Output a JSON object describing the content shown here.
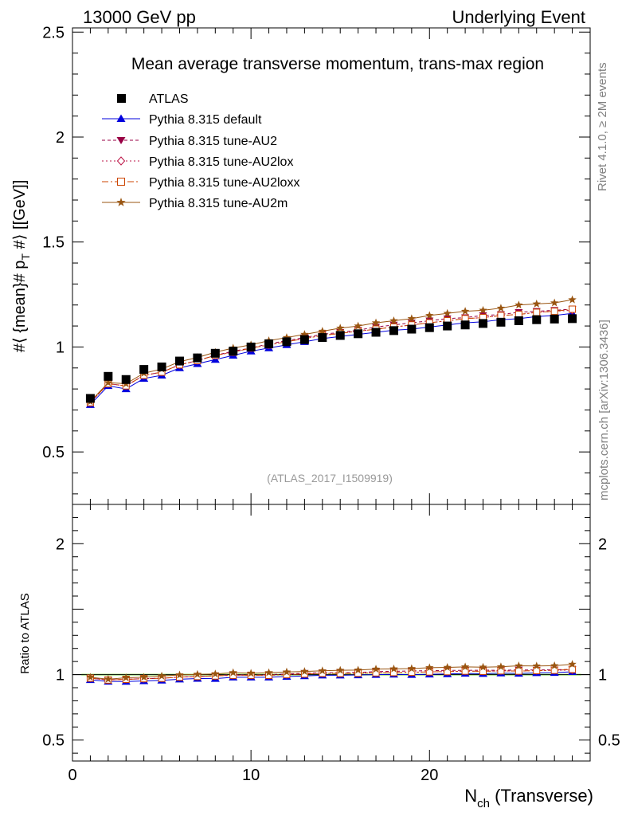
{
  "header": {
    "left": "13000 GeV pp",
    "right": "Underlying Event"
  },
  "side_labels": {
    "top": "Rivet 4.1.0, ≥ 2M events",
    "bottom": "mcplots.cern.ch [arXiv:1306.3436]"
  },
  "colors": {
    "atlas": "#000000",
    "default": "#0000dd",
    "au2": "#990044",
    "au2lox": "#bb1144",
    "au2loxx": "#cc4400",
    "au2m": "#995511",
    "ref_band": "#99ff66"
  },
  "chart_data": [
    {
      "type": "scatter",
      "title": "Mean average transverse momentum, trans-max region",
      "watermark": "(ATLAS_2017_I1509919)",
      "ylabel": "#⟨ {mean}# p_T #⟩ [[GeV]]",
      "ylabel_parts": {
        "pre": "#⟨ {mean}# p",
        "sub": "T",
        "post": " #⟩ [[GeV]]"
      },
      "xlim": [
        0,
        29
      ],
      "ylim": [
        0.25,
        2.52
      ],
      "yticks": [
        0.5,
        1,
        1.5,
        2,
        2.5
      ],
      "ytick_labels": [
        "0.5",
        "1",
        "1.5",
        "2",
        "2.5"
      ],
      "x": [
        1,
        2,
        3,
        4,
        5,
        6,
        7,
        8,
        9,
        10,
        11,
        12,
        13,
        14,
        15,
        16,
        17,
        18,
        19,
        20,
        21,
        22,
        23,
        24,
        25,
        26,
        27,
        28
      ],
      "series": [
        {
          "name": "ATLAS",
          "marker": "square",
          "line": "none",
          "values": [
            0.755,
            0.86,
            0.845,
            0.893,
            0.905,
            0.933,
            0.948,
            0.97,
            0.98,
            1.0,
            1.015,
            1.025,
            1.035,
            1.045,
            1.055,
            1.063,
            1.07,
            1.078,
            1.085,
            1.092,
            1.1,
            1.105,
            1.112,
            1.118,
            1.125,
            1.13,
            1.133,
            1.135
          ]
        },
        {
          "name": "Pythia 8.315 default",
          "marker": "triangle",
          "line": "solid",
          "values": [
            0.725,
            0.815,
            0.8,
            0.85,
            0.865,
            0.9,
            0.92,
            0.94,
            0.96,
            0.98,
            0.995,
            1.01,
            1.025,
            1.04,
            1.05,
            1.06,
            1.07,
            1.08,
            1.085,
            1.095,
            1.105,
            1.115,
            1.12,
            1.13,
            1.135,
            1.145,
            1.15,
            1.16
          ]
        },
        {
          "name": "Pythia 8.315 tune-AU2",
          "marker": "triangle-down",
          "line": "dashed",
          "values": [
            0.735,
            0.825,
            0.815,
            0.865,
            0.88,
            0.915,
            0.935,
            0.96,
            0.98,
            0.995,
            1.015,
            1.03,
            1.045,
            1.06,
            1.07,
            1.08,
            1.095,
            1.105,
            1.115,
            1.125,
            1.135,
            1.14,
            1.15,
            1.155,
            1.165,
            1.17,
            1.175,
            1.18
          ]
        },
        {
          "name": "Pythia 8.315 tune-AU2lox",
          "marker": "diamond",
          "line": "dotted",
          "values": [
            0.735,
            0.825,
            0.815,
            0.865,
            0.88,
            0.915,
            0.935,
            0.96,
            0.975,
            0.995,
            1.01,
            1.025,
            1.04,
            1.055,
            1.065,
            1.075,
            1.085,
            1.095,
            1.105,
            1.115,
            1.125,
            1.135,
            1.14,
            1.15,
            1.155,
            1.165,
            1.17,
            1.175
          ]
        },
        {
          "name": "Pythia 8.315 tune-AU2loxx",
          "marker": "square-open",
          "line": "dashdot",
          "values": [
            0.735,
            0.825,
            0.815,
            0.865,
            0.88,
            0.915,
            0.935,
            0.96,
            0.975,
            0.995,
            1.01,
            1.025,
            1.04,
            1.055,
            1.065,
            1.075,
            1.085,
            1.095,
            1.105,
            1.115,
            1.125,
            1.135,
            1.14,
            1.15,
            1.155,
            1.165,
            1.17,
            1.18
          ]
        },
        {
          "name": "Pythia 8.315 tune-AU2m",
          "marker": "star",
          "line": "solid",
          "values": [
            0.74,
            0.83,
            0.825,
            0.875,
            0.895,
            0.93,
            0.95,
            0.975,
            0.995,
            1.01,
            1.03,
            1.045,
            1.06,
            1.075,
            1.09,
            1.1,
            1.115,
            1.125,
            1.135,
            1.15,
            1.16,
            1.17,
            1.175,
            1.185,
            1.2,
            1.205,
            1.21,
            1.225
          ]
        }
      ]
    },
    {
      "type": "line",
      "ylabel": "Ratio to ATLAS",
      "xlabel": "N_ch (Transverse)",
      "xlabel_parts": {
        "pre": "N",
        "sub": "ch",
        "post": " (Transverse)"
      },
      "xlim": [
        0,
        29
      ],
      "xticks": [
        0,
        10,
        20
      ],
      "xtick_labels": [
        "0",
        "10",
        "20"
      ],
      "ylim": [
        0.34,
        2.3
      ],
      "yticks": [
        0.5,
        1,
        2
      ],
      "ytick_labels": [
        "0.5",
        "1",
        "2"
      ],
      "reference": 1.0,
      "x": [
        1,
        2,
        3,
        4,
        5,
        6,
        7,
        8,
        9,
        10,
        11,
        12,
        13,
        14,
        15,
        16,
        17,
        18,
        19,
        20,
        21,
        22,
        23,
        24,
        25,
        26,
        27,
        28
      ],
      "series": [
        {
          "name": "Pythia 8.315 default",
          "values": [
            0.96,
            0.948,
            0.947,
            0.952,
            0.956,
            0.965,
            0.97,
            0.969,
            0.98,
            0.98,
            0.98,
            0.985,
            0.99,
            0.995,
            0.995,
            0.997,
            1.0,
            1.002,
            1.0,
            1.003,
            1.005,
            1.009,
            1.007,
            1.011,
            1.009,
            1.013,
            1.015,
            1.022
          ]
        },
        {
          "name": "Pythia 8.315 tune-AU2",
          "values": [
            0.973,
            0.959,
            0.964,
            0.969,
            0.972,
            0.981,
            0.986,
            0.99,
            1.0,
            0.995,
            1.0,
            1.005,
            1.01,
            1.014,
            1.014,
            1.016,
            1.023,
            1.025,
            1.028,
            1.03,
            1.032,
            1.032,
            1.034,
            1.033,
            1.036,
            1.035,
            1.037,
            1.04
          ]
        },
        {
          "name": "Pythia 8.315 tune-AU2lox",
          "values": [
            0.973,
            0.959,
            0.964,
            0.969,
            0.972,
            0.981,
            0.986,
            0.99,
            0.995,
            0.995,
            0.995,
            1.0,
            1.005,
            1.01,
            1.009,
            1.011,
            1.014,
            1.016,
            1.018,
            1.021,
            1.023,
            1.027,
            1.025,
            1.029,
            1.027,
            1.031,
            1.033,
            1.035
          ]
        },
        {
          "name": "Pythia 8.315 tune-AU2loxx",
          "values": [
            0.973,
            0.959,
            0.964,
            0.969,
            0.972,
            0.981,
            0.986,
            0.99,
            0.995,
            0.995,
            0.995,
            1.0,
            1.005,
            1.01,
            1.009,
            1.011,
            1.014,
            1.016,
            1.018,
            1.021,
            1.023,
            1.027,
            1.025,
            1.029,
            1.027,
            1.031,
            1.033,
            1.04
          ]
        },
        {
          "name": "Pythia 8.315 tune-AU2m",
          "values": [
            0.98,
            0.965,
            0.976,
            0.98,
            0.989,
            0.997,
            1.002,
            1.005,
            1.015,
            1.01,
            1.015,
            1.02,
            1.024,
            1.029,
            1.033,
            1.035,
            1.042,
            1.044,
            1.046,
            1.053,
            1.055,
            1.059,
            1.057,
            1.06,
            1.067,
            1.066,
            1.068,
            1.079
          ]
        }
      ]
    }
  ]
}
